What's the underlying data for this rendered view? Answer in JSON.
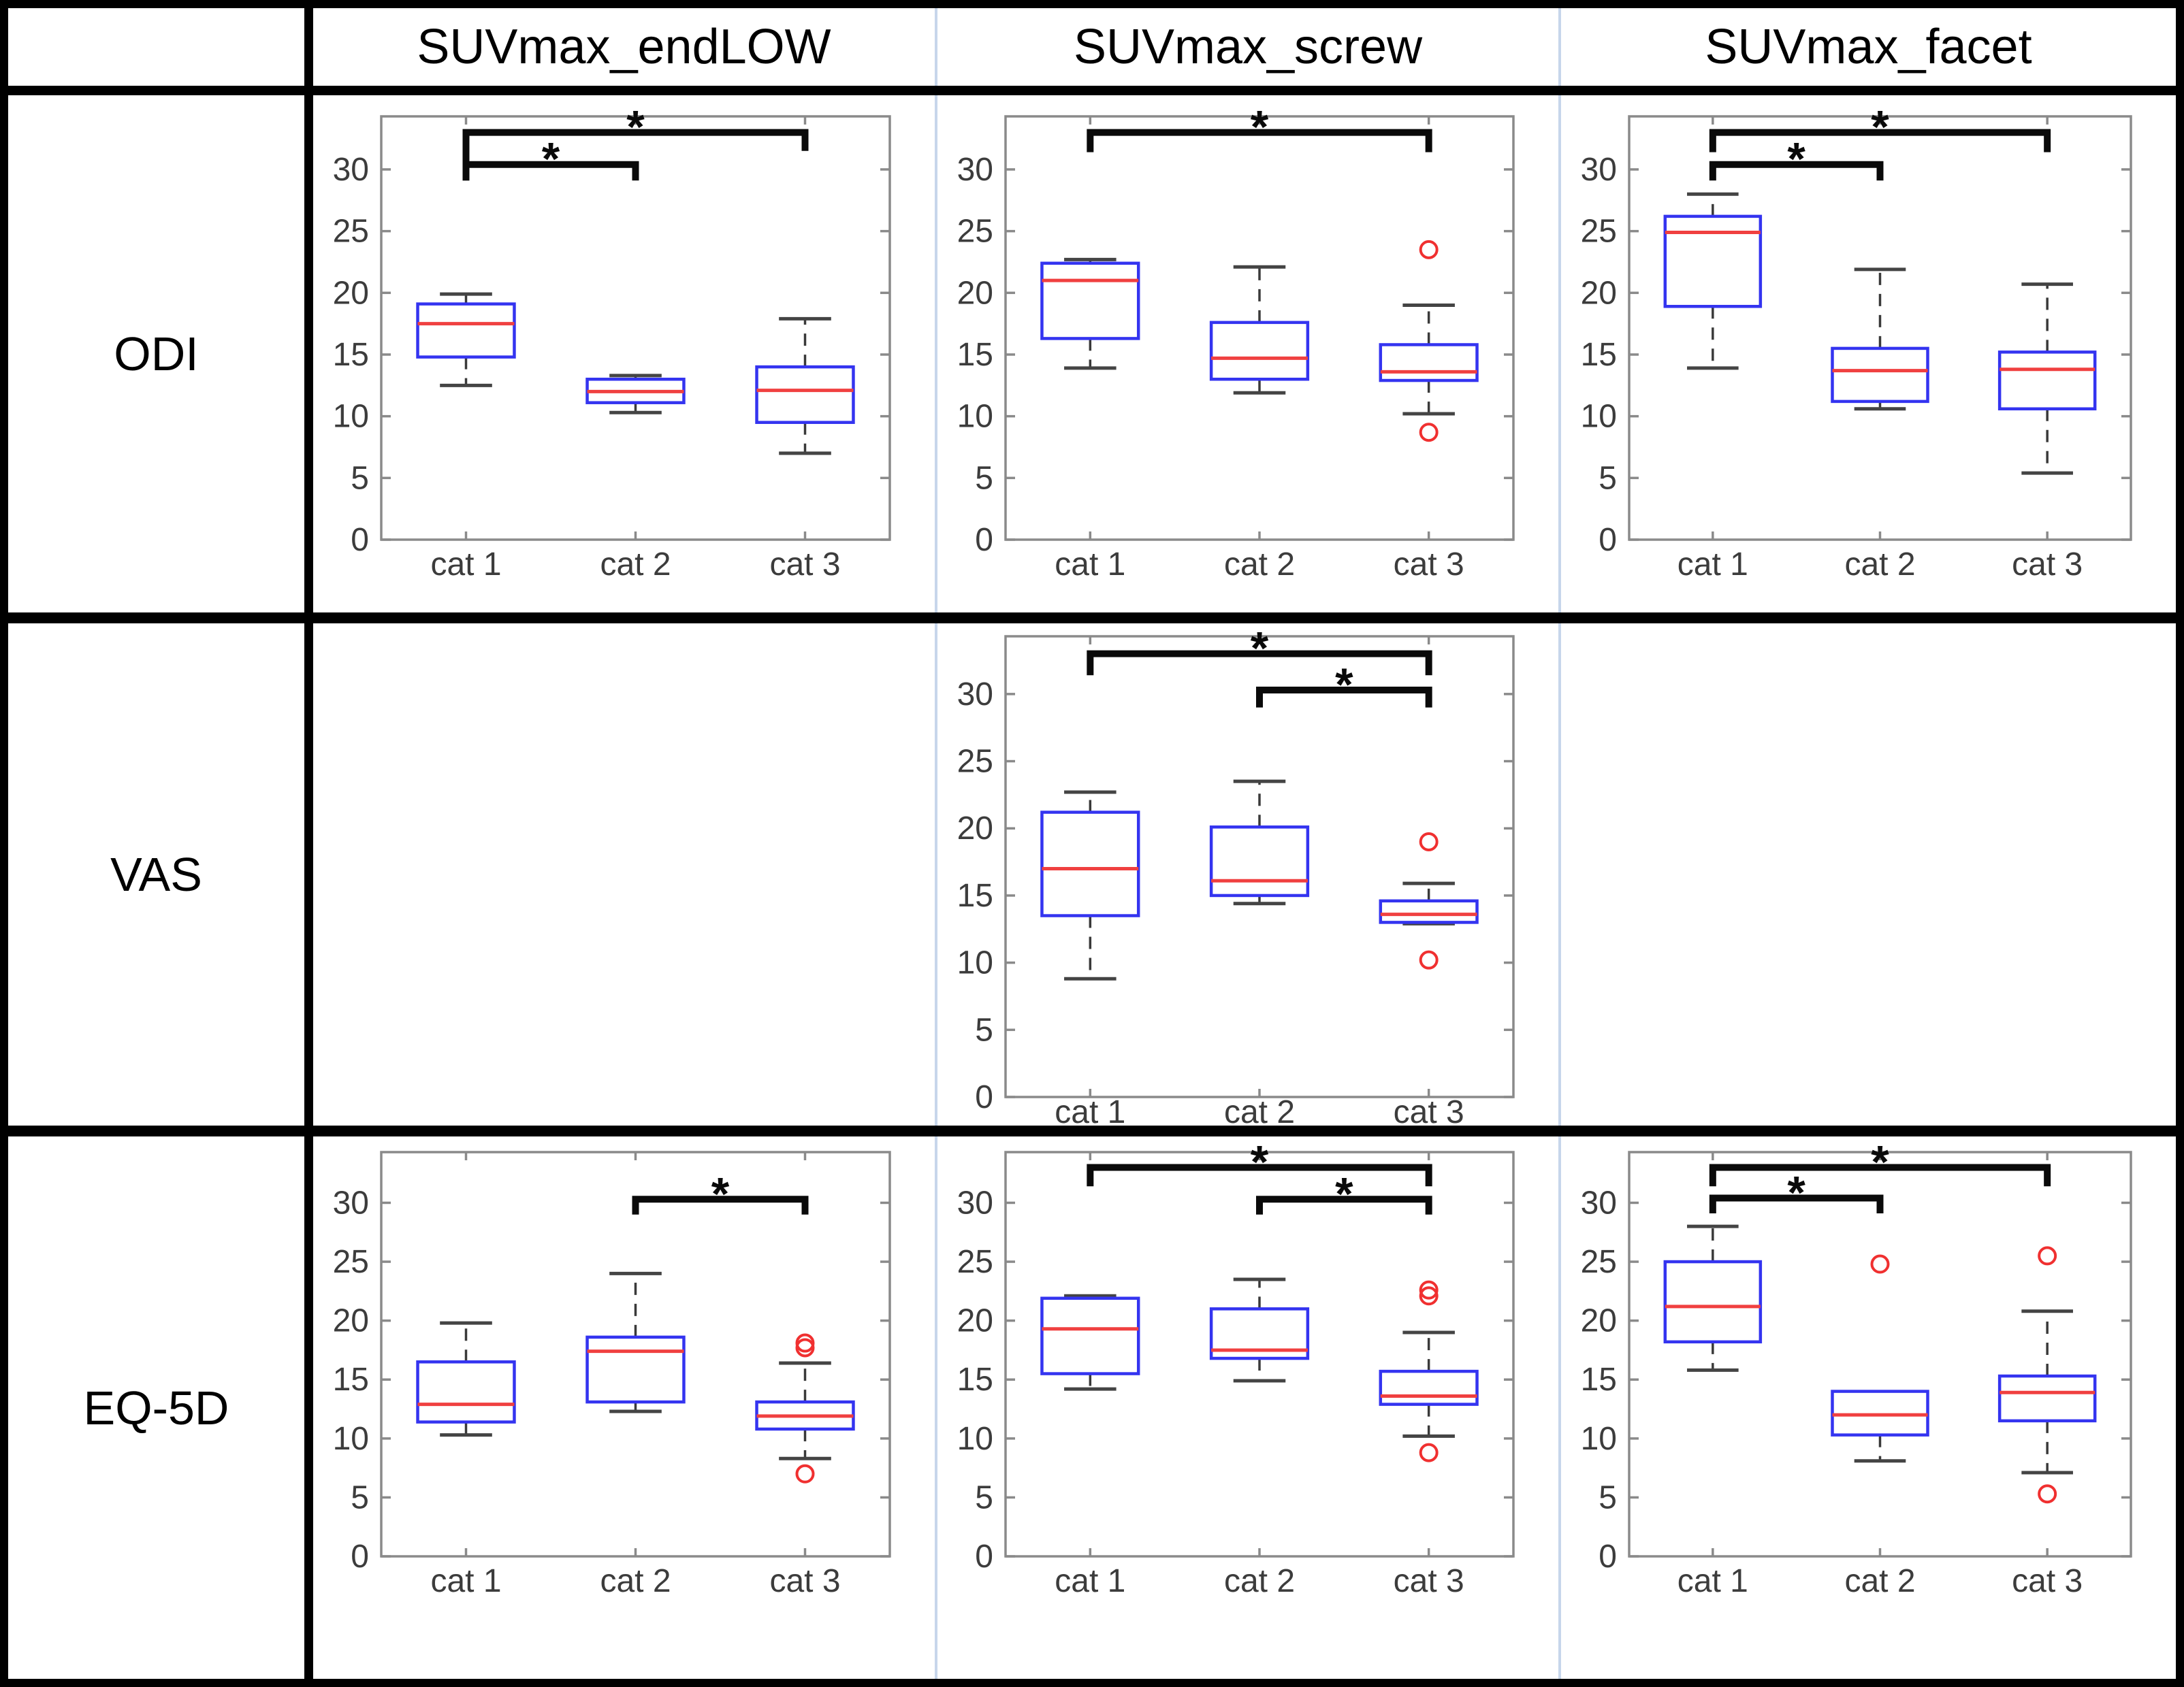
{
  "table": {
    "corner": "",
    "col_headers": [
      "SUVmax_endLOW",
      "SUVmax_screw",
      "SUVmax_facet"
    ],
    "row_headers": [
      "ODI",
      "VAS",
      "EQ-5D"
    ]
  },
  "colors": {
    "box_edge": "#3434f0",
    "median": "#f04040",
    "whisker": "#3a3a3a",
    "cap": "#444444",
    "outlier": "#f03030",
    "axis_frame": "#8a8a8a",
    "tick_label": "#3c3c3c",
    "bracket": "#0a0a0a",
    "col_divider": "#c7d6eb",
    "grid_border": "#000000"
  },
  "chart_data": [
    {
      "id": "odi-endlow",
      "type": "box",
      "row": "ODI",
      "col": "SUVmax_endLOW",
      "grid_row": 0,
      "grid_col": 0,
      "categories": [
        "cat 1",
        "cat 2",
        "cat 3"
      ],
      "ylim": [
        0,
        34.3
      ],
      "yticks": [
        0,
        5,
        10,
        15,
        20,
        25,
        30
      ],
      "boxes": [
        {
          "cat": "cat 1",
          "whislo": 12.5,
          "q1": 14.8,
          "med": 17.5,
          "q3": 19.1,
          "whishi": 19.9,
          "outliers": []
        },
        {
          "cat": "cat 2",
          "whislo": 10.3,
          "q1": 11.1,
          "med": 12.0,
          "q3": 13.0,
          "whishi": 13.3,
          "outliers": []
        },
        {
          "cat": "cat 3",
          "whislo": 7.0,
          "q1": 9.5,
          "med": 12.1,
          "q3": 14.0,
          "whishi": 17.9,
          "outliers": []
        }
      ],
      "brackets": [
        {
          "pair": [
            0,
            1
          ],
          "label": "*",
          "y": 30.4,
          "drop": [
            1.3,
            1.3
          ]
        },
        {
          "pair": [
            0,
            2
          ],
          "label": "*",
          "y": 33.0,
          "drop": [
            3.9,
            1.5
          ]
        }
      ]
    },
    {
      "id": "odi-screw",
      "type": "box",
      "row": "ODI",
      "col": "SUVmax_screw",
      "grid_row": 0,
      "grid_col": 1,
      "categories": [
        "cat 1",
        "cat 2",
        "cat 3"
      ],
      "ylim": [
        0,
        34.3
      ],
      "yticks": [
        0,
        5,
        10,
        15,
        20,
        25,
        30
      ],
      "boxes": [
        {
          "cat": "cat 1",
          "whislo": 13.9,
          "q1": 16.3,
          "med": 21.0,
          "q3": 22.4,
          "whishi": 22.7,
          "outliers": []
        },
        {
          "cat": "cat 2",
          "whislo": 11.9,
          "q1": 13.0,
          "med": 14.7,
          "q3": 17.6,
          "whishi": 22.1,
          "outliers": []
        },
        {
          "cat": "cat 3",
          "whislo": 10.2,
          "q1": 12.9,
          "med": 13.6,
          "q3": 15.8,
          "whishi": 19.0,
          "outliers": [
            23.5,
            8.7
          ]
        }
      ],
      "brackets": [
        {
          "pair": [
            0,
            2
          ],
          "label": "*",
          "y": 33.0,
          "drop": [
            1.6,
            1.6
          ]
        }
      ]
    },
    {
      "id": "odi-facet",
      "type": "box",
      "row": "ODI",
      "col": "SUVmax_facet",
      "grid_row": 0,
      "grid_col": 2,
      "categories": [
        "cat 1",
        "cat 2",
        "cat 3"
      ],
      "ylim": [
        0,
        34.3
      ],
      "yticks": [
        0,
        5,
        10,
        15,
        20,
        25,
        30
      ],
      "boxes": [
        {
          "cat": "cat 1",
          "whislo": 13.9,
          "q1": 18.9,
          "med": 24.9,
          "q3": 26.2,
          "whishi": 28.0,
          "outliers": []
        },
        {
          "cat": "cat 2",
          "whislo": 10.6,
          "q1": 11.2,
          "med": 13.7,
          "q3": 15.5,
          "whishi": 21.9,
          "outliers": []
        },
        {
          "cat": "cat 3",
          "whislo": 5.4,
          "q1": 10.6,
          "med": 13.8,
          "q3": 15.2,
          "whishi": 20.7,
          "outliers": []
        }
      ],
      "brackets": [
        {
          "pair": [
            0,
            1
          ],
          "label": "*",
          "y": 30.4,
          "drop": [
            1.3,
            1.3
          ]
        },
        {
          "pair": [
            0,
            2
          ],
          "label": "*",
          "y": 33.0,
          "drop": [
            1.6,
            1.6
          ]
        }
      ]
    },
    {
      "id": "vas-screw",
      "type": "box",
      "row": "VAS",
      "col": "SUVmax_screw",
      "grid_row": 1,
      "grid_col": 1,
      "categories": [
        "cat 1",
        "cat 2",
        "cat 3"
      ],
      "ylim": [
        0,
        34.3
      ],
      "yticks": [
        0,
        5,
        10,
        15,
        20,
        25,
        30
      ],
      "boxes": [
        {
          "cat": "cat 1",
          "whislo": 8.8,
          "q1": 13.5,
          "med": 17.0,
          "q3": 21.2,
          "whishi": 22.7,
          "outliers": []
        },
        {
          "cat": "cat 2",
          "whislo": 14.4,
          "q1": 15.0,
          "med": 16.1,
          "q3": 20.1,
          "whishi": 23.5,
          "outliers": []
        },
        {
          "cat": "cat 3",
          "whislo": 12.9,
          "q1": 13.0,
          "med": 13.6,
          "q3": 14.6,
          "whishi": 15.9,
          "outliers": [
            19.0,
            10.2
          ]
        }
      ],
      "brackets": [
        {
          "pair": [
            0,
            2
          ],
          "label": "*",
          "y": 33.0,
          "drop": [
            1.6,
            1.6
          ]
        },
        {
          "pair": [
            1,
            2
          ],
          "label": "*",
          "y": 30.3,
          "drop": [
            1.3,
            1.3
          ]
        }
      ]
    },
    {
      "id": "eq5d-endlow",
      "type": "box",
      "row": "EQ-5D",
      "col": "SUVmax_endLOW",
      "grid_row": 2,
      "grid_col": 0,
      "categories": [
        "cat 1",
        "cat 2",
        "cat 3"
      ],
      "ylim": [
        0,
        34.3
      ],
      "yticks": [
        0,
        5,
        10,
        15,
        20,
        25,
        30
      ],
      "boxes": [
        {
          "cat": "cat 1",
          "whislo": 10.3,
          "q1": 11.4,
          "med": 12.9,
          "q3": 16.5,
          "whishi": 19.8,
          "outliers": []
        },
        {
          "cat": "cat 2",
          "whislo": 12.3,
          "q1": 13.1,
          "med": 17.4,
          "q3": 18.6,
          "whishi": 24.0,
          "outliers": []
        },
        {
          "cat": "cat 3",
          "whislo": 8.3,
          "q1": 10.8,
          "med": 11.9,
          "q3": 13.1,
          "whishi": 16.4,
          "outliers": [
            18.1,
            17.7,
            7.0
          ]
        }
      ],
      "brackets": [
        {
          "pair": [
            1,
            2
          ],
          "label": "*",
          "y": 30.3,
          "drop": [
            1.3,
            1.3
          ]
        }
      ]
    },
    {
      "id": "eq5d-screw",
      "type": "box",
      "row": "EQ-5D",
      "col": "SUVmax_screw",
      "grid_row": 2,
      "grid_col": 1,
      "categories": [
        "cat 1",
        "cat 2",
        "cat 3"
      ],
      "ylim": [
        0,
        34.3
      ],
      "yticks": [
        0,
        5,
        10,
        15,
        20,
        25,
        30
      ],
      "boxes": [
        {
          "cat": "cat 1",
          "whislo": 14.2,
          "q1": 15.5,
          "med": 19.3,
          "q3": 21.9,
          "whishi": 22.1,
          "outliers": []
        },
        {
          "cat": "cat 2",
          "whislo": 14.9,
          "q1": 16.8,
          "med": 17.5,
          "q3": 21.0,
          "whishi": 23.5,
          "outliers": []
        },
        {
          "cat": "cat 3",
          "whislo": 10.2,
          "q1": 12.9,
          "med": 13.6,
          "q3": 15.7,
          "whishi": 19.0,
          "outliers": [
            22.6,
            22.1,
            8.8
          ]
        }
      ],
      "brackets": [
        {
          "pair": [
            0,
            2
          ],
          "label": "*",
          "y": 33.0,
          "drop": [
            1.6,
            1.6
          ]
        },
        {
          "pair": [
            1,
            2
          ],
          "label": "*",
          "y": 30.3,
          "drop": [
            1.3,
            1.3
          ]
        }
      ]
    },
    {
      "id": "eq5d-facet",
      "type": "box",
      "row": "EQ-5D",
      "col": "SUVmax_facet",
      "grid_row": 2,
      "grid_col": 2,
      "categories": [
        "cat 1",
        "cat 2",
        "cat 3"
      ],
      "ylim": [
        0,
        34.3
      ],
      "yticks": [
        0,
        5,
        10,
        15,
        20,
        25,
        30
      ],
      "boxes": [
        {
          "cat": "cat 1",
          "whislo": 15.8,
          "q1": 18.2,
          "med": 21.2,
          "q3": 25.0,
          "whishi": 28.0,
          "outliers": []
        },
        {
          "cat": "cat 2",
          "whislo": 8.1,
          "q1": 10.3,
          "med": 12.0,
          "q3": 14.0,
          "whishi": 14.0,
          "outliers": [
            24.8
          ]
        },
        {
          "cat": "cat 3",
          "whislo": 7.1,
          "q1": 11.5,
          "med": 13.9,
          "q3": 15.3,
          "whishi": 20.8,
          "outliers": [
            25.5,
            5.3
          ]
        }
      ],
      "brackets": [
        {
          "pair": [
            0,
            1
          ],
          "label": "*",
          "y": 30.4,
          "drop": [
            1.3,
            1.3
          ]
        },
        {
          "pair": [
            0,
            2
          ],
          "label": "*",
          "y": 33.0,
          "drop": [
            1.6,
            1.6
          ]
        }
      ]
    }
  ]
}
